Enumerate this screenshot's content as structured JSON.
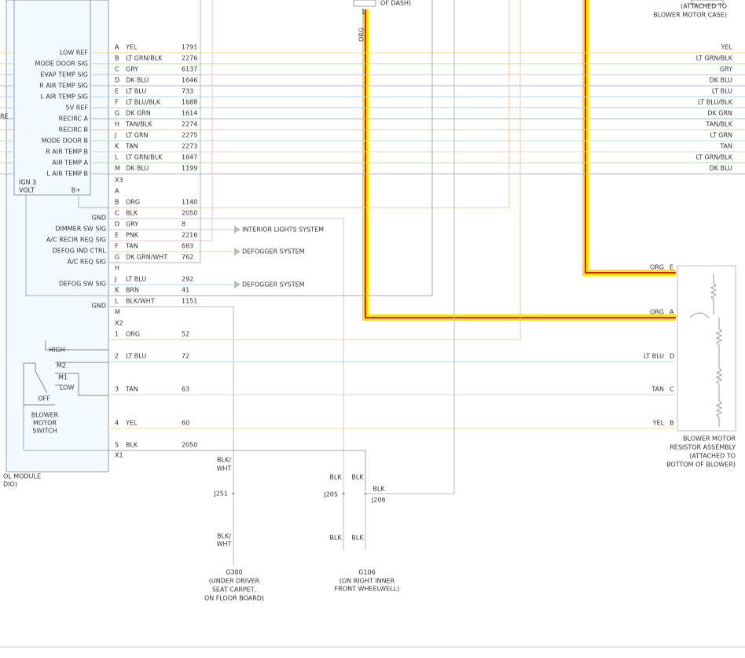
{
  "top": {
    "dash_note": "OF DASH)",
    "case_note_1": "(ATTACHED TO",
    "case_note_2": "BLOWER MOTOR CASE)",
    "pin": "1",
    "wire": "ORG"
  },
  "module": {
    "name_1": "OL MODULE",
    "name_2": "DIO)",
    "side_note": "RE",
    "ign_1": "IGN 3",
    "ign_2": "VOLT",
    "batt": "B+"
  },
  "x3": {
    "label": "X3",
    "rows": [
      {
        "pin": "A",
        "signal": "LOW REF",
        "color": "YEL",
        "circuit": 1791,
        "right_label": "YEL"
      },
      {
        "pin": "B",
        "signal": "MODE DOOR SIG",
        "color": "LT GRN/BLK",
        "circuit": 2276,
        "right_label": "LT GRN/BLK"
      },
      {
        "pin": "C",
        "signal": "EVAP TEMP SIG",
        "color": "GRY",
        "circuit": 6137,
        "right_label": "GRY"
      },
      {
        "pin": "D",
        "signal": "R AIR TEMP SIG",
        "color": "DK BLU",
        "circuit": 1646,
        "right_label": "DK BLU"
      },
      {
        "pin": "E",
        "signal": "L AIR TEMP SIG",
        "color": "LT BLU",
        "circuit": 733,
        "right_label": "LT BLU"
      },
      {
        "pin": "F",
        "signal": "5V REF",
        "color": "LT BLU/BLK",
        "circuit": 1688,
        "right_label": "LT BLU/BLK"
      },
      {
        "pin": "G",
        "signal": "RECIRC A",
        "color": "DK GRN",
        "circuit": 1614,
        "right_label": "DK GRN"
      },
      {
        "pin": "H",
        "signal": "RECIRC B",
        "color": "TAN/BLK",
        "circuit": 2274,
        "right_label": "TAN/BLK"
      },
      {
        "pin": "J",
        "signal": "MODE DOOR B",
        "color": "LT GRN",
        "circuit": 2275,
        "right_label": "LT GRN"
      },
      {
        "pin": "K",
        "signal": "R AIR TEMP B",
        "color": "TAN",
        "circuit": 2273,
        "right_label": "TAN"
      },
      {
        "pin": "L",
        "signal": "AIR TEMP A",
        "color": "LT GRN/BLK",
        "circuit": 1647,
        "right_label": "LT GRN/BLK"
      },
      {
        "pin": "M",
        "signal": "L AIR TEMP B",
        "color": "DK BLU",
        "circuit": 1199,
        "right_label": "DK BLU"
      }
    ]
  },
  "x2": {
    "label": "X2",
    "rows": [
      {
        "pin": "A"
      },
      {
        "pin": "B",
        "color": "ORG",
        "circuit": 1140
      },
      {
        "pin": "C",
        "signal": "GND",
        "color": "BLK",
        "circuit": 2050
      },
      {
        "pin": "D",
        "signal": "DIMMER SW SIG",
        "color": "GRY",
        "circuit": 8,
        "ref": "INTERIOR LIGHTS SYSTEM"
      },
      {
        "pin": "E",
        "signal": "A/C RECIR REQ SIG",
        "color": "PNK",
        "circuit": 2216
      },
      {
        "pin": "F",
        "signal": "DEFOG IND CTRL",
        "color": "TAN",
        "circuit": 683,
        "ref": "DEFOGGER SYSTEM"
      },
      {
        "pin": "G",
        "signal": "A/C REQ SIG",
        "color": "DK GRN/WHT",
        "circuit": 762
      },
      {
        "pin": "H"
      },
      {
        "pin": "J",
        "signal": "DEFOG SW SIG",
        "color": "LT BLU",
        "circuit": 292,
        "ref": "DEFOGGER SYSTEM"
      },
      {
        "pin": "K",
        "color": "BRN",
        "circuit": 41
      },
      {
        "pin": "L",
        "signal": "GND",
        "color": "BLK/WHT",
        "circuit": 1151
      },
      {
        "pin": "M"
      }
    ]
  },
  "x1": {
    "label": "X1",
    "rows": [
      {
        "pin": "1",
        "color": "ORG",
        "circuit": 52
      },
      {
        "pin": "2",
        "color": "LT BLU",
        "circuit": 72,
        "res_color": "LT BLU",
        "res_pin": "D"
      },
      {
        "pin": "3",
        "color": "TAN",
        "circuit": 63,
        "res_color": "TAN",
        "res_pin": "C"
      },
      {
        "pin": "4",
        "color": "YEL",
        "circuit": 60,
        "res_color": "YEL",
        "res_pin": "B"
      },
      {
        "pin": "5",
        "color": "BLK",
        "circuit": 2050
      }
    ]
  },
  "switch": {
    "high": "HIGH",
    "m2": "M2",
    "m1": "M1",
    "low": "LOW",
    "off": "OFF",
    "name_1": "BLOWER",
    "name_2": "MOTOR",
    "name_3": "SWITCH"
  },
  "resistor": {
    "e_color": "ORG",
    "e_pin": "E",
    "a_color": "ORG",
    "a_pin": "A",
    "name_1": "BLOWER MOTOR",
    "name_2": "RESISTOR ASSEMBLY",
    "name_3": "(ATTACHED TO",
    "name_4": "BOTTOM OF BLOWER)"
  },
  "ground_g300": {
    "wire_1a": "BLK/",
    "wire_1b": "WHT",
    "splice": "J251",
    "wire_2a": "BLK/",
    "wire_2b": "WHT",
    "name": "G300",
    "loc_1": "(UNDER DRIVER",
    "loc_2": "SEAT CARPET,",
    "loc_3": "ON FLOOR BOARD)"
  },
  "ground_g106": {
    "w1": "BLK",
    "w2": "BLK",
    "w3": "BLK",
    "splice_a": "J205",
    "splice_b": "J206",
    "w4": "BLK",
    "w5": "BLK",
    "name": "G106",
    "loc_1": "(ON RIGHT INNER",
    "loc_2": "FRONT WHEELWELL)"
  }
}
